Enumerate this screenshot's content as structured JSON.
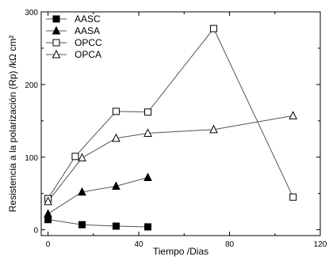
{
  "chart_data": {
    "type": "line",
    "title": "",
    "xlabel": "Tiempo /Dias",
    "ylabel": "Resistencia a la polarización (Rp) /kΩ cm²",
    "xlim": [
      -3,
      120
    ],
    "ylim": [
      -8,
      300
    ],
    "x_ticks": [
      0,
      40,
      80,
      120
    ],
    "y_ticks": [
      0,
      100,
      200,
      300
    ],
    "grid": false,
    "legend_position": "top-left",
    "series": [
      {
        "name": "AASC",
        "marker": "filled-square",
        "x": [
          0,
          15,
          30,
          44
        ],
        "y": [
          14,
          7,
          5,
          4
        ]
      },
      {
        "name": "AASA",
        "marker": "filled-triangle",
        "x": [
          0,
          15,
          30,
          44
        ],
        "y": [
          22,
          52,
          60,
          72
        ]
      },
      {
        "name": "OPCC",
        "marker": "open-square",
        "x": [
          0,
          12,
          30,
          44,
          73,
          108
        ],
        "y": [
          43,
          101,
          163,
          162,
          277,
          45
        ]
      },
      {
        "name": "OPCA",
        "marker": "open-triangle",
        "x": [
          0,
          15,
          30,
          44,
          73,
          108
        ],
        "y": [
          39,
          99,
          126,
          133,
          138,
          157
        ]
      }
    ]
  }
}
